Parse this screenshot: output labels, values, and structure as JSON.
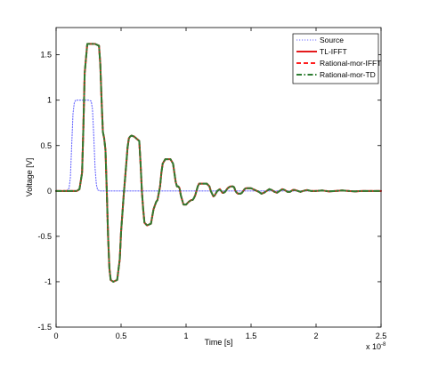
{
  "chart_data": {
    "type": "line",
    "xlabel": "Time [s]",
    "ylabel": "Voltage [V]",
    "x_multiplier": "x 10",
    "x_multiplier_exp": "-8",
    "xlim": [
      0,
      2.5
    ],
    "ylim": [
      -1.5,
      1.8
    ],
    "x_ticks": [
      0,
      0.5,
      1,
      1.5,
      2,
      2.5
    ],
    "x_tick_labels": [
      "0",
      "0.5",
      "1",
      "1.5",
      "2",
      "2.5"
    ],
    "y_ticks": [
      -1.5,
      -1,
      -0.5,
      0,
      0.5,
      1,
      1.5
    ],
    "y_tick_labels": [
      "-1.5",
      "-1",
      "-0.5",
      "0",
      "0.5",
      "1",
      "1.5"
    ],
    "grid": false,
    "legend_position": "top-right",
    "series": [
      {
        "name": "Source",
        "color": "#6b6bff",
        "style": "dotted",
        "x": [
          0,
          0.08,
          0.1,
          0.11,
          0.12,
          0.13,
          0.14,
          0.15,
          0.2,
          0.25,
          0.27,
          0.28,
          0.29,
          0.3,
          0.31,
          0.32,
          0.34,
          0.5,
          1,
          1.5,
          2,
          2.5
        ],
        "y": [
          0,
          0,
          0.03,
          0.15,
          0.5,
          0.85,
          0.97,
          1,
          1,
          1,
          0.99,
          0.9,
          0.6,
          0.25,
          0.07,
          0.01,
          0,
          0,
          0,
          0,
          0,
          0
        ]
      },
      {
        "name": "TL-IFFT",
        "color": "#e41a1c",
        "style": "solid",
        "x": [
          0,
          0.16,
          0.18,
          0.2,
          0.21,
          0.22,
          0.24,
          0.3,
          0.33,
          0.34,
          0.35,
          0.36,
          0.37,
          0.38,
          0.39,
          0.4,
          0.41,
          0.42,
          0.44,
          0.47,
          0.49,
          0.5,
          0.52,
          0.54,
          0.55,
          0.56,
          0.57,
          0.58,
          0.6,
          0.64,
          0.65,
          0.66,
          0.67,
          0.68,
          0.7,
          0.73,
          0.75,
          0.77,
          0.78,
          0.8,
          0.81,
          0.82,
          0.84,
          0.88,
          0.9,
          0.91,
          0.92,
          0.93,
          0.94,
          0.95,
          0.96,
          0.97,
          0.98,
          1.0,
          1.02,
          1.04,
          1.05,
          1.06,
          1.07,
          1.08,
          1.09,
          1.1,
          1.12,
          1.16,
          1.18,
          1.19,
          1.2,
          1.21,
          1.22,
          1.24,
          1.26,
          1.27,
          1.28,
          1.29,
          1.3,
          1.31,
          1.32,
          1.34,
          1.36,
          1.37,
          1.38,
          1.39,
          1.4,
          1.42,
          1.43,
          1.44,
          1.45,
          1.46,
          1.48,
          1.5,
          1.53,
          1.56,
          1.58,
          1.6,
          1.62,
          1.64,
          1.66,
          1.68,
          1.7,
          1.72,
          1.74,
          1.76,
          1.78,
          1.8,
          1.82,
          1.84,
          1.86,
          1.88,
          1.9,
          1.93,
          1.96,
          2.0,
          2.05,
          2.1,
          2.15,
          2.2,
          2.25,
          2.3,
          2.35,
          2.4,
          2.45,
          2.5
        ],
        "y": [
          0,
          0,
          0.02,
          0.2,
          0.7,
          1.3,
          1.62,
          1.62,
          1.6,
          1.4,
          1.0,
          0.65,
          0.58,
          0.45,
          0.0,
          -0.5,
          -0.85,
          -0.98,
          -1.0,
          -0.98,
          -0.75,
          -0.45,
          -0.05,
          0.3,
          0.48,
          0.58,
          0.6,
          0.61,
          0.6,
          0.55,
          0.3,
          0.0,
          -0.2,
          -0.35,
          -0.38,
          -0.36,
          -0.2,
          -0.12,
          -0.1,
          0.05,
          0.2,
          0.3,
          0.35,
          0.35,
          0.3,
          0.2,
          0.1,
          0.05,
          0.05,
          0.03,
          -0.05,
          -0.1,
          -0.15,
          -0.15,
          -0.12,
          -0.1,
          -0.1,
          -0.08,
          -0.05,
          0.0,
          0.05,
          0.08,
          0.08,
          0.08,
          0.05,
          0.0,
          -0.03,
          -0.06,
          -0.05,
          0.0,
          0.02,
          0.0,
          -0.02,
          -0.02,
          -0.01,
          0.01,
          0.03,
          0.05,
          0.05,
          0.04,
          0.0,
          -0.02,
          -0.03,
          -0.03,
          -0.02,
          0.0,
          0.02,
          0.03,
          0.03,
          0.03,
          0.01,
          -0.01,
          -0.03,
          -0.02,
          0.0,
          0.02,
          0.01,
          -0.01,
          -0.02,
          0.0,
          0.02,
          0.01,
          -0.01,
          -0.01,
          0.01,
          0.01,
          0.0,
          -0.01,
          0.0,
          0.01,
          0.0,
          0.0,
          0.005,
          -0.005,
          0.0,
          0.005,
          0.0,
          -0.005,
          0.0,
          0.0,
          0.0,
          0.0
        ]
      },
      {
        "name": "Rational-mor-IFFT",
        "color": "#ff2020",
        "style": "dashed",
        "same_as": "TL-IFFT"
      },
      {
        "name": "Rational-mor-TD",
        "color": "#2e7d32",
        "style": "dashdot",
        "same_as": "TL-IFFT"
      }
    ]
  }
}
